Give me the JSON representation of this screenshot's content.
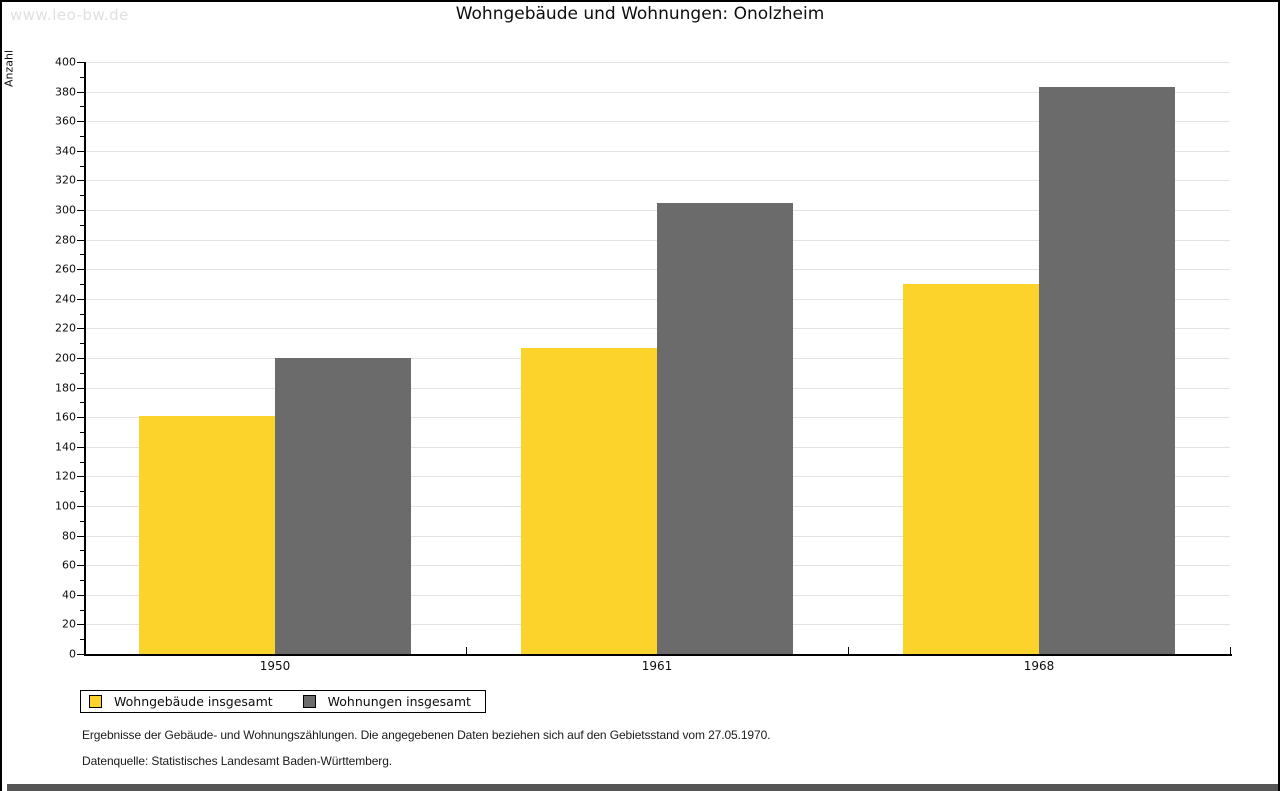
{
  "watermark": "www.leo-bw.de",
  "chart_data": {
    "type": "bar",
    "title": "Wohngebäude und Wohnungen: Onolzheim",
    "ylabel": "Anzahl",
    "xlabel": "",
    "categories": [
      "1950",
      "1961",
      "1968"
    ],
    "series": [
      {
        "name": "Wohngebäude insgesamt",
        "color": "#FCD32B",
        "values": [
          161,
          207,
          250
        ]
      },
      {
        "name": "Wohnungen insgesamt",
        "color": "#6B6B6B",
        "values": [
          200,
          305,
          383
        ]
      }
    ],
    "ylim": [
      0,
      400
    ],
    "ytick_step": 20,
    "ytick_minor_step": 10,
    "grid": true,
    "gridline_color": "#e3e3e3",
    "legend_position": "bottom-left"
  },
  "footnotes": {
    "line1": "Ergebnisse der Gebäude- und Wohnungszählungen. Die angegebenen Daten beziehen sich auf den Gebietsstand vom 27.05.1970.",
    "line2": "Datenquelle: Statistisches Landesamt Baden-Württemberg."
  }
}
